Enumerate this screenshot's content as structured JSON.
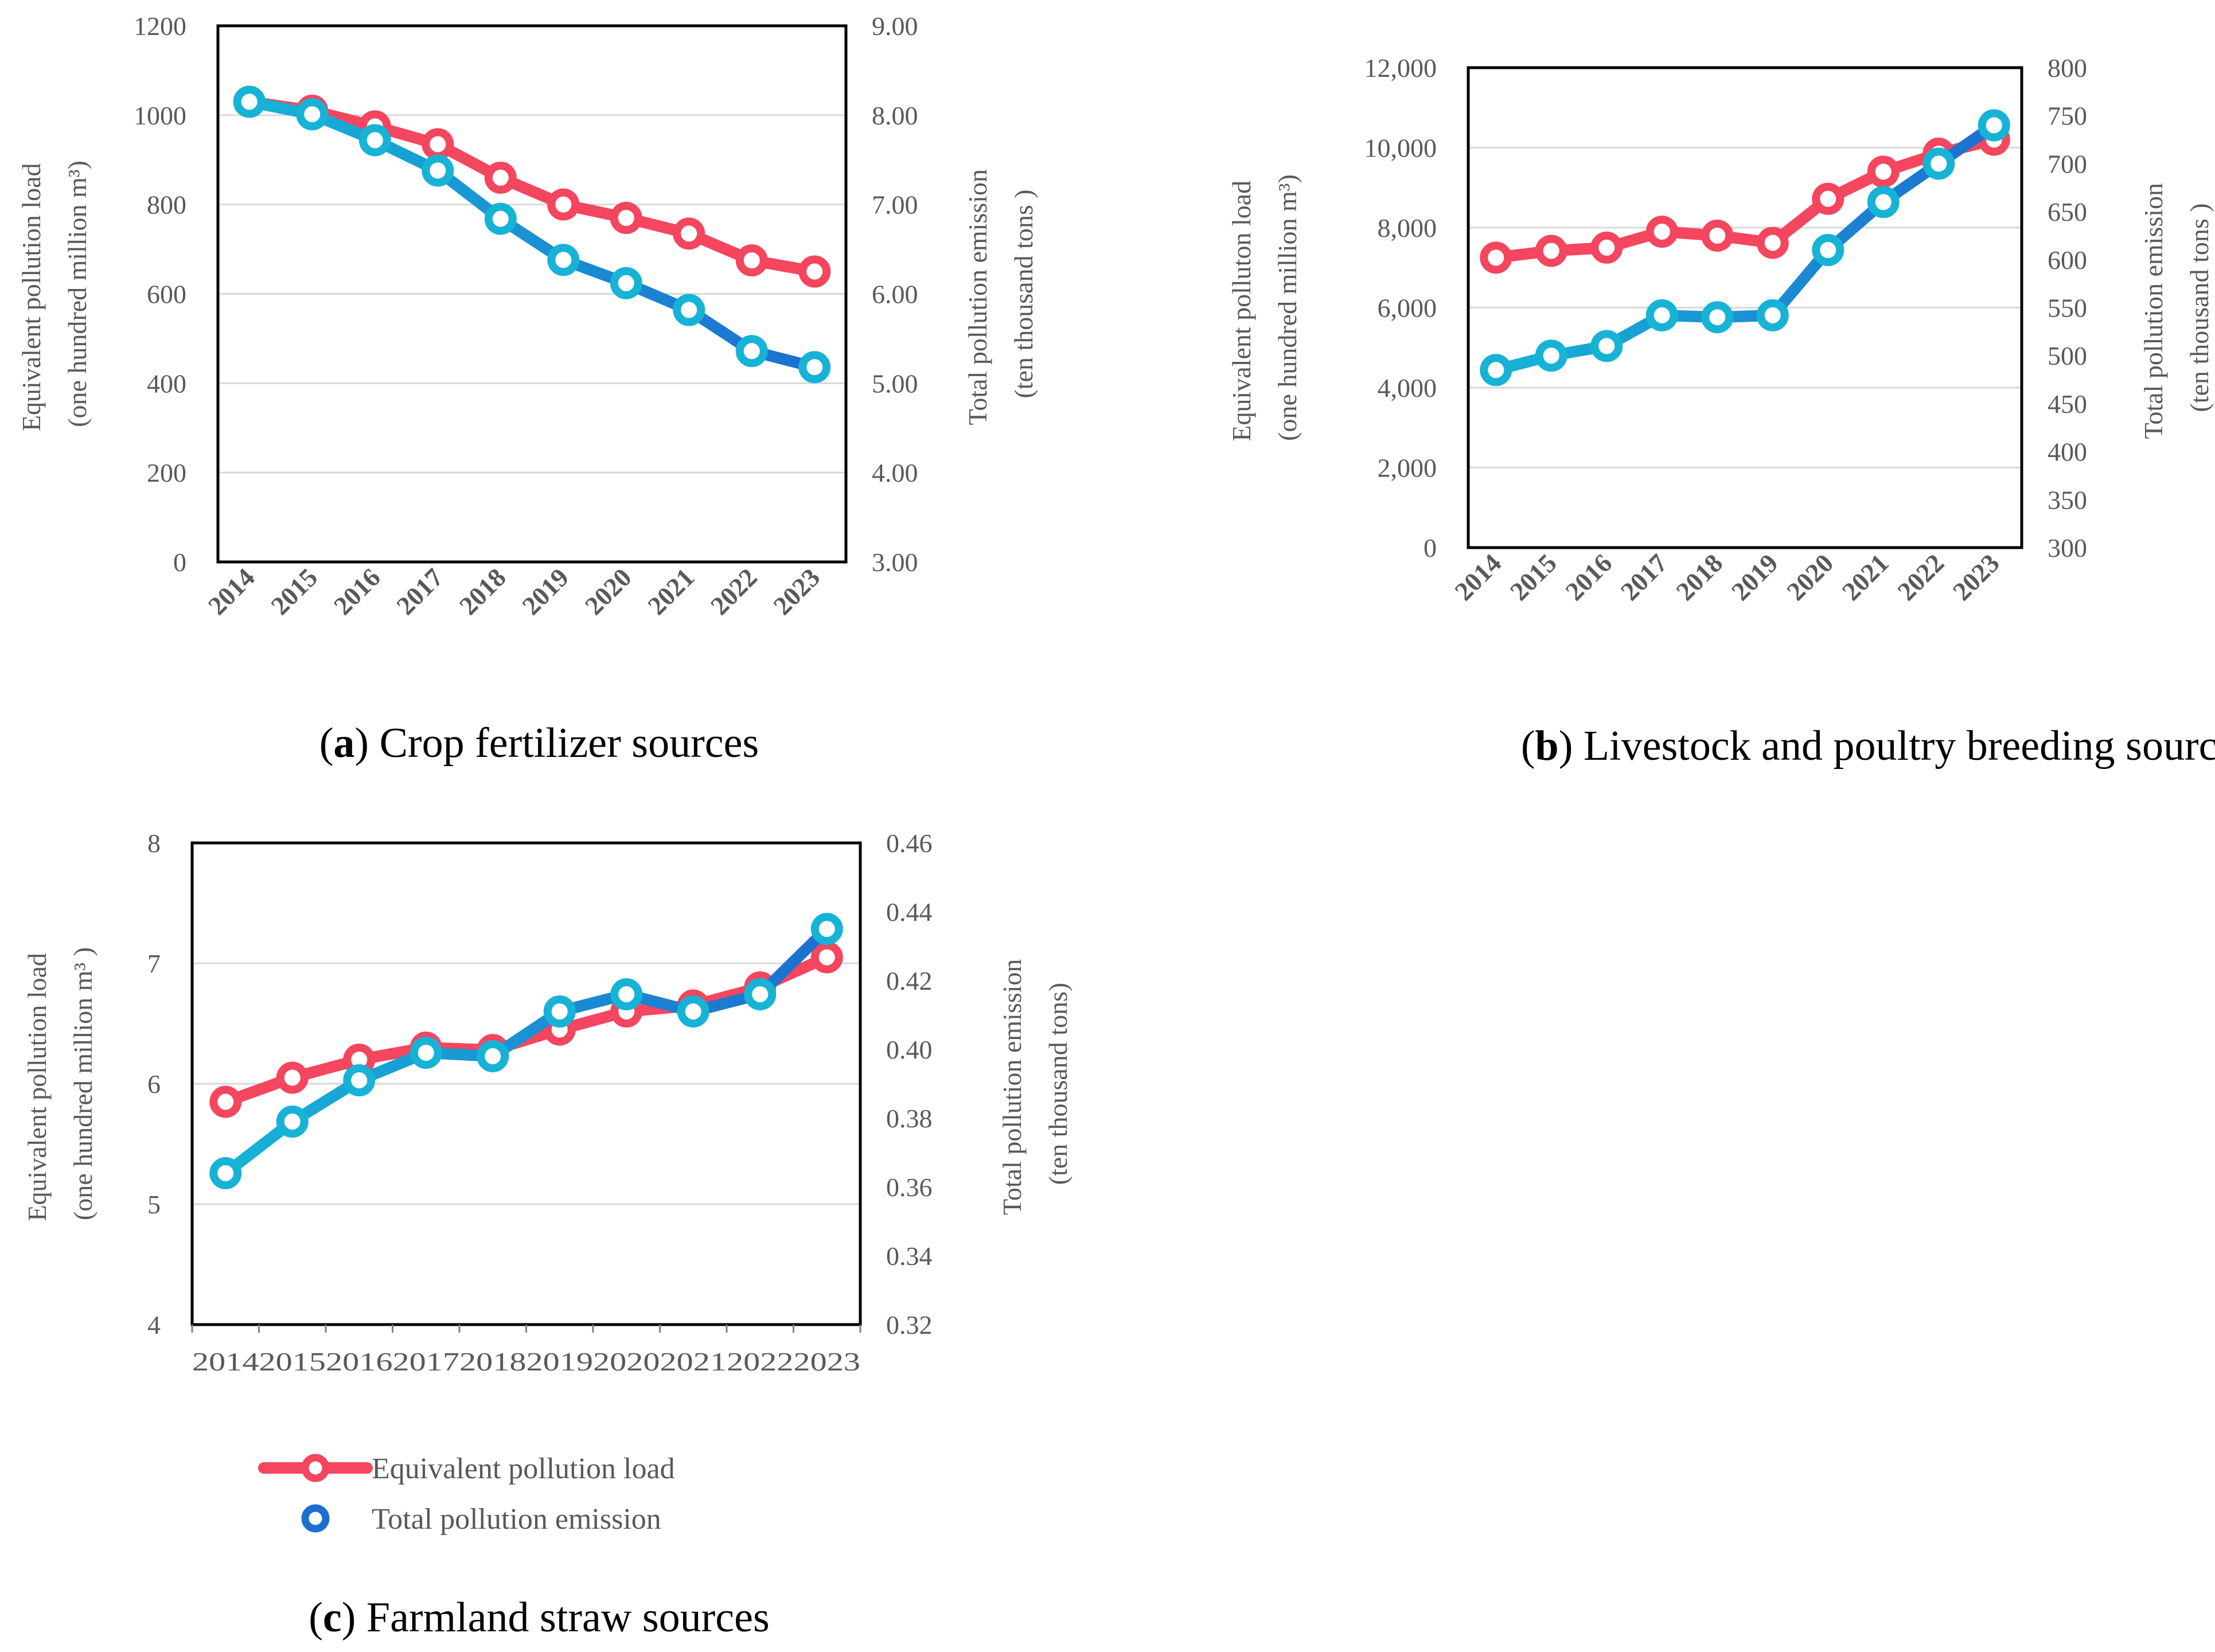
{
  "colors": {
    "load": "#F4465E",
    "emission_start": "#17B3D6",
    "emission_end": "#1C6FD0",
    "grid": "#D9D9D9",
    "frame": "#000000",
    "text": "#595959"
  },
  "legend": {
    "load_label": "Equivalent pollution load",
    "emission_label": "Total pollution emission"
  },
  "chart_data": [
    {
      "id": "a",
      "type": "line",
      "caption_letter": "a",
      "caption_rest": "Crop fertilizer sources",
      "categories": [
        "2014",
        "2015",
        "2016",
        "2017",
        "2018",
        "2019",
        "2020",
        "2021",
        "2022",
        "2023"
      ],
      "ylabel_lines": [
        "Equivalent pollution load",
        "(one hundred million m³)"
      ],
      "y2label_lines": [
        "Total pollution emission",
        "(ten thousand tons )"
      ],
      "ylim": [
        0,
        1200
      ],
      "yticks": [
        0,
        200,
        400,
        600,
        800,
        1000,
        1200
      ],
      "ytick_labels": [
        "0",
        "200",
        "400",
        "600",
        "800",
        "1000",
        "1200"
      ],
      "y2lim": [
        3,
        9
      ],
      "y2ticks": [
        3,
        4,
        5,
        6,
        7,
        8,
        9
      ],
      "y2tick_labels": [
        "3.00",
        "4.00",
        "5.00",
        "6.00",
        "7.00",
        "8.00",
        "9.00"
      ],
      "gridlines": true,
      "series": [
        {
          "name": "Equivalent pollution load",
          "axis": "left",
          "values": [
            1030,
            1010,
            975,
            935,
            860,
            800,
            770,
            735,
            675,
            650
          ]
        },
        {
          "name": "Total pollution emission",
          "axis": "right",
          "values": [
            8.15,
            8.01,
            7.72,
            7.38,
            6.84,
            6.38,
            6.12,
            5.82,
            5.36,
            5.18
          ]
        }
      ]
    },
    {
      "id": "b",
      "type": "line",
      "caption_letter": "b",
      "caption_rest": "Livestock and poultry breeding sources",
      "categories": [
        "2014",
        "2015",
        "2016",
        "2017",
        "2018",
        "2019",
        "2020",
        "2021",
        "2022",
        "2023"
      ],
      "ylabel_lines": [
        "Equivalent polluton load",
        "(one hundred million m³)"
      ],
      "y2label_lines": [
        "Total pollution emission",
        "(ten thousand  tons )"
      ],
      "ylim": [
        0,
        12000
      ],
      "yticks": [
        0,
        2000,
        4000,
        6000,
        8000,
        10000,
        12000
      ],
      "ytick_labels": [
        "0",
        "2,000",
        "4,000",
        "6,000",
        "8,000",
        "10,000",
        "12,000"
      ],
      "y2lim": [
        300,
        800
      ],
      "y2ticks": [
        300,
        350,
        400,
        450,
        500,
        550,
        600,
        650,
        700,
        750,
        800
      ],
      "y2tick_labels": [
        "300",
        "350",
        "400",
        "450",
        "500",
        "550",
        "600",
        "650",
        "700",
        "750",
        "800"
      ],
      "gridlines": true,
      "series": [
        {
          "name": "Equivalent pollution load",
          "axis": "left",
          "values": [
            7250,
            7420,
            7500,
            7900,
            7800,
            7620,
            8720,
            9400,
            9850,
            10200
          ]
        },
        {
          "name": "Total pollution emission",
          "axis": "right",
          "values": [
            485,
            500,
            510,
            542,
            540,
            542,
            610,
            660,
            700,
            740
          ]
        }
      ]
    },
    {
      "id": "c",
      "type": "line",
      "caption_letter": "c",
      "caption_rest": "Farmland straw sources",
      "categories": [
        "2014",
        "2015",
        "2016",
        "2017",
        "2018",
        "2019",
        "2020",
        "2021",
        "2022",
        "2023"
      ],
      "xtick_text": "2014201520162017201820192020202120222023",
      "ylabel_lines": [
        "Equivalent pollution load",
        "(one hundred million m³ )"
      ],
      "y2label_lines": [
        "Total pollution emission",
        "(ten thousand tons)"
      ],
      "ylim": [
        4,
        8
      ],
      "yticks": [
        4,
        5,
        6,
        7,
        8
      ],
      "ytick_labels": [
        "4",
        "5",
        "6",
        "7",
        "8"
      ],
      "y2lim": [
        0.32,
        0.46
      ],
      "y2ticks": [
        0.32,
        0.34,
        0.36,
        0.38,
        0.4,
        0.42,
        0.44,
        0.46
      ],
      "y2tick_labels": [
        "0.32",
        "0.34",
        "0.36",
        "0.38",
        "0.40",
        "0.42",
        "0.44",
        "0.46"
      ],
      "gridlines": true,
      "series": [
        {
          "name": "Equivalent pollution load",
          "axis": "left",
          "values": [
            5.85,
            6.05,
            6.2,
            6.3,
            6.28,
            6.45,
            6.6,
            6.65,
            6.8,
            7.05
          ]
        },
        {
          "name": "Total pollution emission",
          "axis": "right",
          "values": [
            0.364,
            0.379,
            0.391,
            0.399,
            0.398,
            0.411,
            0.416,
            0.411,
            0.416,
            0.435
          ]
        }
      ]
    }
  ]
}
